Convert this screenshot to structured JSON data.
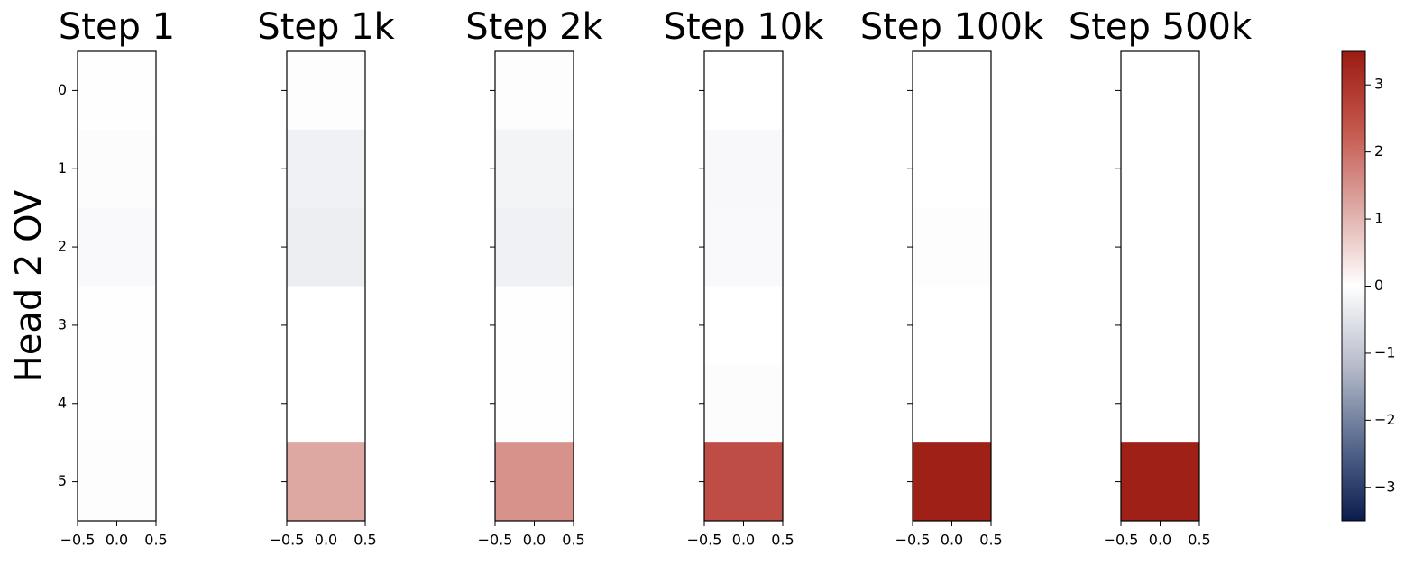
{
  "chart_data": [
    {
      "type": "heatmap",
      "title": "Step 1",
      "ylabel": "Head 2 OV",
      "values": [
        -0.02,
        -0.05,
        -0.1,
        -0.02,
        -0.02,
        0.03
      ],
      "xlim": [
        -0.5,
        0.5
      ],
      "ylim": [
        5.5,
        -0.5
      ],
      "xticks": [
        {
          "value": -0.5,
          "label": "−0.5"
        },
        {
          "value": 0,
          "label": "0.0"
        },
        0.5
      ],
      "yticks": [
        0,
        1,
        2,
        3,
        4,
        5
      ]
    },
    {
      "type": "heatmap",
      "title": "Step 1k",
      "values": [
        -0.03,
        -0.25,
        -0.3,
        0,
        0,
        1.2
      ],
      "xlim": [
        -0.5,
        0.5
      ],
      "ylim": [
        5.5,
        -0.5
      ],
      "xticks": [
        {
          "value": -0.5,
          "label": "−0.5"
        },
        {
          "value": 0,
          "label": "0.0"
        },
        0.5
      ],
      "yticks": [
        0,
        1,
        2,
        3,
        4,
        5
      ]
    },
    {
      "type": "heatmap",
      "title": "Step 2k",
      "values": [
        -0.03,
        -0.2,
        -0.25,
        -0.02,
        -0.02,
        1.5
      ],
      "xlim": [
        -0.5,
        0.5
      ],
      "ylim": [
        5.5,
        -0.5
      ],
      "xticks": [
        {
          "value": -0.5,
          "label": "−0.5"
        },
        {
          "value": 0,
          "label": "0.0"
        },
        0.5
      ],
      "yticks": [
        0,
        1,
        2,
        3,
        4,
        5
      ]
    },
    {
      "type": "heatmap",
      "title": "Step 10k",
      "values": [
        0,
        -0.12,
        -0.1,
        0,
        -0.05,
        2.5
      ],
      "xlim": [
        -0.5,
        0.5
      ],
      "ylim": [
        5.5,
        -0.5
      ],
      "xticks": [
        {
          "value": -0.5,
          "label": "−0.5"
        },
        {
          "value": 0,
          "label": "0.0"
        },
        0.5
      ],
      "yticks": [
        0,
        1,
        2,
        3,
        4,
        5
      ]
    },
    {
      "type": "heatmap",
      "title": "Step 100k",
      "values": [
        0,
        0,
        -0.03,
        0,
        0,
        3.4
      ],
      "xlim": [
        -0.5,
        0.5
      ],
      "ylim": [
        5.5,
        -0.5
      ],
      "xticks": [
        {
          "value": -0.5,
          "label": "−0.5"
        },
        {
          "value": 0,
          "label": "0.0"
        },
        0.5
      ],
      "yticks": [
        0,
        1,
        2,
        3,
        4,
        5
      ]
    },
    {
      "type": "heatmap",
      "title": "Step 500k",
      "values": [
        0,
        0,
        0,
        0,
        0,
        3.4
      ],
      "xlim": [
        -0.5,
        0.5
      ],
      "ylim": [
        5.5,
        -0.5
      ],
      "xticks": [
        {
          "value": -0.5,
          "label": "−0.5"
        },
        {
          "value": 0,
          "label": "0.0"
        },
        0.5
      ],
      "yticks": [
        0,
        1,
        2,
        3,
        4,
        5
      ]
    }
  ],
  "colorbar": {
    "clim": [
      -3.5,
      3.5
    ],
    "ticks": [
      {
        "value": -3,
        "label": "−3"
      },
      {
        "value": -2,
        "label": "−2"
      },
      {
        "value": -1,
        "label": "−1"
      },
      0,
      1,
      2,
      3
    ],
    "colors": [
      "#0a1c4d",
      "#5a6b8f",
      "#b8bdcb",
      "#ffffff",
      "#dea9a5",
      "#c4574d",
      "#9b1b12"
    ]
  }
}
